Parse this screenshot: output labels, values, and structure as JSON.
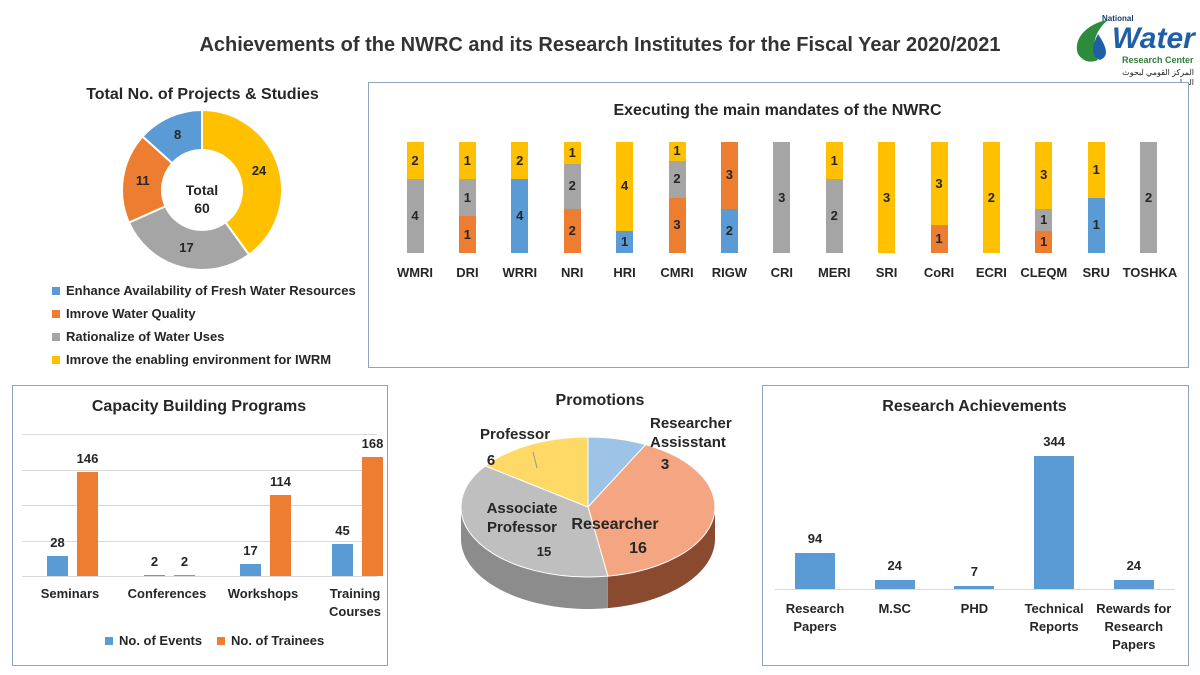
{
  "header": {
    "title": "Achievements of the NWRC and its Research Institutes for the Fiscal Year 2020/2021"
  },
  "logo": {
    "top": "National",
    "main": "Water",
    "sub": "Research Center",
    "arabic": "المركز القومي لبحوث المياه"
  },
  "colors": {
    "blue": "#5b9bd5",
    "orange": "#ed7d31",
    "gray": "#a5a5a5",
    "yellow": "#ffc000",
    "pie_blue": "#9dc3e6",
    "pie_salmon": "#f4a582",
    "pie_gray": "#bfbfbf",
    "pie_yellow": "#ffd966",
    "panel_border": "#8fa3bf"
  },
  "chart_data": [
    {
      "id": "projects",
      "type": "pie",
      "style": "donut",
      "title": "Total  No. of Projects & Studies",
      "center_label": "Total",
      "center_value": "60",
      "categories": [
        "Enhance Availability of Fresh  Water Resources",
        "Imrove Water Quality",
        "Rationalize of Water Uses",
        "Imrove the  enabling environment for IWRM"
      ],
      "values": [
        8,
        11,
        17,
        24
      ],
      "legend": "bottom"
    },
    {
      "id": "mandates",
      "type": "bar",
      "stacked": "percent",
      "title": "Executing the main mandates of the NWRC",
      "categories": [
        "WMRI",
        "DRI",
        "WRRI",
        "NRI",
        "HRI",
        "CMRI",
        "RIGW",
        "CRI",
        "MERI",
        "SRI",
        "CoRI",
        "ECRI",
        "CLEQM",
        "SRU",
        "TOSHKA"
      ],
      "series": [
        {
          "name": "Enhance Availability of Fresh  Water Resources",
          "values": [
            0,
            0,
            4,
            0,
            1,
            0,
            2,
            0,
            0,
            0,
            0,
            0,
            0,
            1,
            0
          ]
        },
        {
          "name": "Imrove Water Quality",
          "values": [
            0,
            1,
            0,
            2,
            0,
            3,
            3,
            0,
            0,
            0,
            1,
            0,
            1,
            0,
            0
          ]
        },
        {
          "name": "Rationalize of Water Uses",
          "values": [
            4,
            1,
            0,
            2,
            0,
            2,
            0,
            3,
            2,
            0,
            0,
            0,
            1,
            0,
            2
          ]
        },
        {
          "name": "Imrove the  enabling environment for IWRM",
          "values": [
            2,
            1,
            2,
            1,
            4,
            1,
            0,
            0,
            1,
            3,
            3,
            2,
            3,
            1,
            0
          ]
        }
      ]
    },
    {
      "id": "capacity",
      "type": "bar",
      "title": "Capacity Building Programs",
      "categories": [
        "Seminars",
        "Conferences",
        "Workshops",
        "Training Courses"
      ],
      "series": [
        {
          "name": "No. of Events",
          "values": [
            28,
            2,
            17,
            45
          ]
        },
        {
          "name": "No. of Trainees",
          "values": [
            146,
            2,
            114,
            168
          ]
        }
      ],
      "ylim": [
        0,
        200
      ],
      "grid": true,
      "legend": "bottom"
    },
    {
      "id": "promotions",
      "type": "pie",
      "style": "3d",
      "title": "Promotions",
      "categories": [
        "Researcher Assisstant",
        "Researcher",
        "Associate Professor",
        "Professor"
      ],
      "values": [
        3,
        16,
        15,
        6
      ]
    },
    {
      "id": "research",
      "type": "bar",
      "title": "Research Achievements",
      "categories": [
        "Research Papers",
        "M.SC",
        "PHD",
        "Technical Reports",
        "Rewards for Research Papers"
      ],
      "values": [
        94,
        24,
        7,
        344,
        24
      ],
      "ylim": [
        0,
        400
      ],
      "grid": false
    }
  ]
}
